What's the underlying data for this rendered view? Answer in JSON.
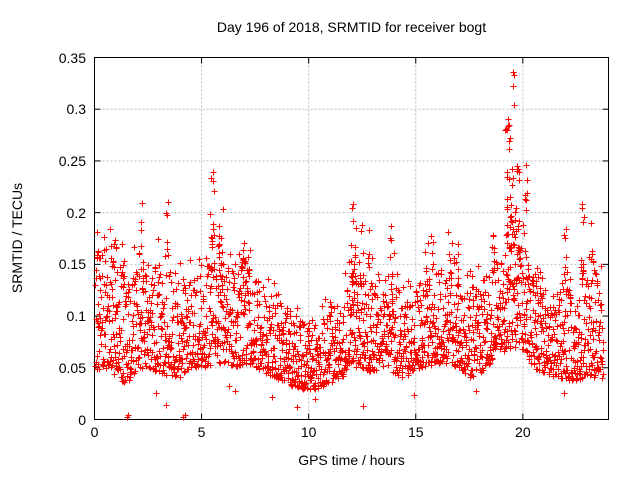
{
  "chart_data": {
    "type": "scatter",
    "title": "Day 196 of 2018, SRMTID for receiver bogt",
    "xlabel": "GPS time / hours",
    "ylabel": "SRMTID / TECUs",
    "xlim": [
      0,
      24
    ],
    "ylim": [
      0,
      0.35
    ],
    "grid": true,
    "legend": null,
    "marker": "plus",
    "marker_color": "#ff0000",
    "marker_size_px": 7,
    "grid_color": "#bdbdbd",
    "axis_color": "#000000",
    "xticks": [
      {
        "v": 0,
        "label": "0"
      },
      {
        "v": 5,
        "label": "5"
      },
      {
        "v": 10,
        "label": "10"
      },
      {
        "v": 15,
        "label": "15"
      },
      {
        "v": 20,
        "label": "20"
      }
    ],
    "yticks": [
      {
        "v": 0,
        "label": "0"
      },
      {
        "v": 0.05,
        "label": "0.05"
      },
      {
        "v": 0.1,
        "label": "0.1"
      },
      {
        "v": 0.15,
        "label": "0.15"
      },
      {
        "v": 0.2,
        "label": "0.2"
      },
      {
        "v": 0.25,
        "label": "0.25"
      },
      {
        "v": 0.3,
        "label": "0.3"
      },
      {
        "v": 0.35,
        "label": "0.35"
      }
    ],
    "x_data_range": [
      0.03,
      23.75
    ],
    "n_band_points": 2300,
    "seed": 2018196,
    "envelope": [
      [
        0.0,
        0.045,
        0.155
      ],
      [
        0.3,
        0.05,
        0.165
      ],
      [
        0.7,
        0.05,
        0.16
      ],
      [
        1.0,
        0.04,
        0.15
      ],
      [
        1.5,
        0.035,
        0.14
      ],
      [
        2.0,
        0.05,
        0.15
      ],
      [
        2.5,
        0.05,
        0.155
      ],
      [
        3.0,
        0.045,
        0.15
      ],
      [
        3.5,
        0.04,
        0.145
      ],
      [
        4.0,
        0.04,
        0.13
      ],
      [
        4.5,
        0.05,
        0.135
      ],
      [
        5.0,
        0.05,
        0.14
      ],
      [
        5.5,
        0.05,
        0.155
      ],
      [
        6.0,
        0.055,
        0.15
      ],
      [
        6.5,
        0.05,
        0.148
      ],
      [
        7.0,
        0.055,
        0.155
      ],
      [
        7.5,
        0.05,
        0.14
      ],
      [
        8.0,
        0.045,
        0.128
      ],
      [
        8.5,
        0.04,
        0.118
      ],
      [
        9.0,
        0.035,
        0.108
      ],
      [
        9.5,
        0.03,
        0.098
      ],
      [
        10.0,
        0.028,
        0.092
      ],
      [
        10.5,
        0.03,
        0.098
      ],
      [
        11.0,
        0.035,
        0.108
      ],
      [
        11.5,
        0.04,
        0.118
      ],
      [
        12.0,
        0.05,
        0.14
      ],
      [
        12.5,
        0.05,
        0.138
      ],
      [
        13.0,
        0.045,
        0.13
      ],
      [
        13.5,
        0.05,
        0.138
      ],
      [
        14.0,
        0.045,
        0.128
      ],
      [
        14.5,
        0.04,
        0.122
      ],
      [
        15.0,
        0.05,
        0.128
      ],
      [
        15.5,
        0.05,
        0.138
      ],
      [
        16.0,
        0.055,
        0.142
      ],
      [
        16.5,
        0.055,
        0.148
      ],
      [
        17.0,
        0.05,
        0.13
      ],
      [
        17.5,
        0.04,
        0.124
      ],
      [
        18.0,
        0.045,
        0.134
      ],
      [
        18.5,
        0.055,
        0.148
      ],
      [
        19.0,
        0.065,
        0.158
      ],
      [
        19.5,
        0.07,
        0.178
      ],
      [
        20.0,
        0.068,
        0.168
      ],
      [
        20.5,
        0.05,
        0.14
      ],
      [
        21.0,
        0.045,
        0.12
      ],
      [
        21.5,
        0.04,
        0.12
      ],
      [
        22.0,
        0.04,
        0.13
      ],
      [
        22.5,
        0.035,
        0.12
      ],
      [
        22.8,
        0.04,
        0.148
      ],
      [
        23.2,
        0.04,
        0.155
      ],
      [
        23.75,
        0.04,
        0.125
      ]
    ],
    "spike_clusters": [
      [
        0.2,
        0.1,
        0.165,
        5
      ],
      [
        0.9,
        0.15,
        0.175,
        8
      ],
      [
        1.35,
        0.08,
        0.16,
        4
      ],
      [
        2.2,
        0.08,
        0.205,
        5
      ],
      [
        3.4,
        0.1,
        0.205,
        6
      ],
      [
        5.5,
        0.1,
        0.235,
        12
      ],
      [
        5.85,
        0.15,
        0.21,
        10
      ],
      [
        6.9,
        0.1,
        0.178,
        8
      ],
      [
        7.15,
        0.1,
        0.165,
        6
      ],
      [
        12.1,
        0.12,
        0.205,
        16
      ],
      [
        12.45,
        0.1,
        0.19,
        8
      ],
      [
        12.9,
        0.12,
        0.185,
        8
      ],
      [
        13.9,
        0.1,
        0.188,
        8
      ],
      [
        15.6,
        0.2,
        0.178,
        10
      ],
      [
        16.8,
        0.2,
        0.172,
        10
      ],
      [
        18.7,
        0.12,
        0.185,
        8
      ],
      [
        19.3,
        0.15,
        0.29,
        25
      ],
      [
        19.55,
        0.1,
        0.27,
        10
      ],
      [
        19.75,
        0.15,
        0.25,
        14
      ],
      [
        20.15,
        0.12,
        0.24,
        8
      ],
      [
        20.7,
        0.25,
        0.15,
        10
      ],
      [
        21.95,
        0.1,
        0.188,
        8
      ],
      [
        22.8,
        0.1,
        0.205,
        9
      ],
      [
        23.2,
        0.1,
        0.188,
        6
      ]
    ],
    "outlier_points": [
      [
        19.55,
        0.336
      ],
      [
        19.58,
        0.333
      ],
      [
        19.56,
        0.322
      ],
      [
        19.6,
        0.304
      ],
      [
        19.3,
        0.291
      ],
      [
        19.35,
        0.285
      ],
      [
        19.25,
        0.28
      ],
      [
        19.4,
        0.272
      ],
      [
        5.52,
        0.239
      ],
      [
        20.15,
        0.246
      ],
      [
        20.2,
        0.232
      ],
      [
        2.2,
        0.209
      ],
      [
        3.42,
        0.21
      ],
      [
        12.05,
        0.208
      ],
      [
        22.78,
        0.208
      ],
      [
        22.85,
        0.196
      ],
      [
        23.2,
        0.19
      ],
      [
        16.5,
        0.181
      ],
      [
        0.95,
        0.174
      ],
      [
        1.53,
        0.002
      ],
      [
        1.56,
        0.004
      ],
      [
        3.35,
        0.014
      ],
      [
        4.12,
        0.002
      ],
      [
        4.22,
        0.004
      ],
      [
        9.45,
        0.012
      ],
      [
        12.55,
        0.013
      ],
      [
        8.3,
        0.022
      ],
      [
        10.3,
        0.02
      ],
      [
        14.9,
        0.024
      ],
      [
        21.9,
        0.026
      ],
      [
        6.55,
        0.028
      ],
      [
        6.3,
        0.032
      ],
      [
        2.85,
        0.026
      ],
      [
        17.8,
        0.028
      ]
    ]
  }
}
